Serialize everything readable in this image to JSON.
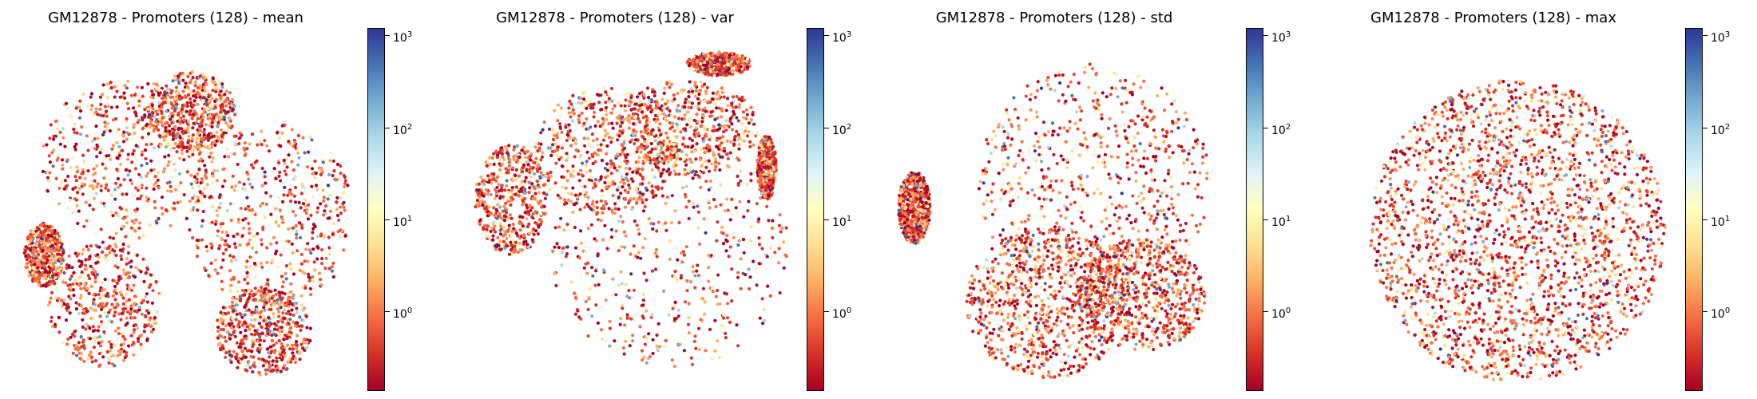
{
  "chart_data": [
    {
      "type": "scatter",
      "title": "GM12878 - Promoters (128) - mean",
      "colorbar": {
        "scale": "log",
        "cmap": "RdYlBu",
        "ticks": [
          {
            "base": "10",
            "exp": "3"
          },
          {
            "base": "10",
            "exp": "2"
          },
          {
            "base": "10",
            "exp": "1"
          },
          {
            "base": "10",
            "exp": "0"
          }
        ]
      },
      "axes_visible": false
    },
    {
      "type": "scatter",
      "title": "GM12878 - Promoters (128) - var",
      "colorbar": {
        "scale": "log",
        "cmap": "RdYlBu",
        "ticks": [
          {
            "base": "10",
            "exp": "3"
          },
          {
            "base": "10",
            "exp": "2"
          },
          {
            "base": "10",
            "exp": "1"
          },
          {
            "base": "10",
            "exp": "0"
          }
        ]
      },
      "axes_visible": false
    },
    {
      "type": "scatter",
      "title": "GM12878 - Promoters (128) - std",
      "colorbar": {
        "scale": "log",
        "cmap": "RdYlBu",
        "ticks": [
          {
            "base": "10",
            "exp": "3"
          },
          {
            "base": "10",
            "exp": "2"
          },
          {
            "base": "10",
            "exp": "1"
          },
          {
            "base": "10",
            "exp": "0"
          }
        ]
      },
      "axes_visible": false
    },
    {
      "type": "scatter",
      "title": "GM12878 - Promoters (128) - max",
      "colorbar": {
        "scale": "log",
        "cmap": "RdYlBu",
        "ticks": [
          {
            "base": "10",
            "exp": "3"
          },
          {
            "base": "10",
            "exp": "2"
          },
          {
            "base": "10",
            "exp": "1"
          },
          {
            "base": "10",
            "exp": "0"
          }
        ]
      },
      "axes_visible": false
    }
  ]
}
